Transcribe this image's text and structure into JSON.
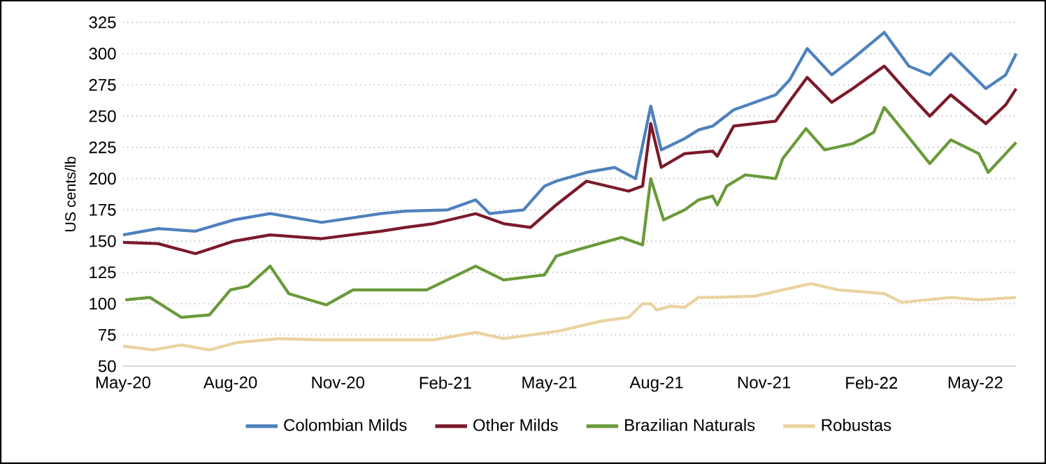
{
  "chart_data": {
    "type": "line",
    "ylabel": "US cents/lb",
    "xlim": [
      "2020-05-01",
      "2022-06-05"
    ],
    "ylim": [
      50,
      325
    ],
    "yticks": [
      50,
      75,
      100,
      125,
      150,
      175,
      200,
      225,
      250,
      275,
      300,
      325
    ],
    "xticks": [
      {
        "value": "2020-05-01",
        "label": "May-20"
      },
      {
        "value": "2020-08-01",
        "label": "Aug-20"
      },
      {
        "value": "2020-11-01",
        "label": "Nov-20"
      },
      {
        "value": "2021-02-01",
        "label": "Feb-21"
      },
      {
        "value": "2021-05-01",
        "label": "May-21"
      },
      {
        "value": "2021-08-01",
        "label": "Aug-21"
      },
      {
        "value": "2021-11-01",
        "label": "Nov-21"
      },
      {
        "value": "2022-02-01",
        "label": "Feb-22"
      },
      {
        "value": "2022-05-01",
        "label": "May-22"
      }
    ],
    "grid": "y",
    "legend": "bottom",
    "marker": "none",
    "line_style": "solid",
    "series": [
      {
        "name": "Colombian Milds",
        "color": "#4f81bd",
        "x": [
          "2020-05-01",
          "2020-05-31",
          "2020-07-02",
          "2020-08-04",
          "2020-09-04",
          "2020-10-18",
          "2020-12-08",
          "2020-12-29",
          "2021-02-03",
          "2021-02-27",
          "2021-03-11",
          "2021-04-09",
          "2021-04-27",
          "2021-05-07",
          "2021-06-02",
          "2021-06-26",
          "2021-07-14",
          "2021-07-27",
          "2021-08-05",
          "2021-08-25",
          "2021-09-06",
          "2021-09-18",
          "2021-10-06",
          "2021-11-11",
          "2021-11-23",
          "2021-12-08",
          "2021-12-29",
          "2022-01-16",
          "2022-02-12",
          "2022-03-05",
          "2022-03-23",
          "2022-04-10",
          "2022-05-10",
          "2022-05-27",
          "2022-06-05"
        ],
        "values": [
          155,
          160,
          158,
          167,
          172,
          165,
          172,
          174,
          175,
          183,
          172,
          175,
          194,
          198,
          205,
          209,
          200,
          258,
          223,
          232,
          239,
          242,
          255,
          267,
          279,
          304,
          283,
          296,
          317,
          290,
          283,
          300,
          272,
          283,
          300
        ]
      },
      {
        "name": "Other Milds",
        "color": "#7b1a2a",
        "x": [
          "2020-05-01",
          "2020-05-31",
          "2020-07-02",
          "2020-08-04",
          "2020-09-04",
          "2020-10-18",
          "2020-12-08",
          "2020-12-29",
          "2021-01-22",
          "2021-02-27",
          "2021-03-23",
          "2021-04-15",
          "2021-05-07",
          "2021-06-02",
          "2021-07-08",
          "2021-07-20",
          "2021-07-27",
          "2021-08-05",
          "2021-08-25",
          "2021-09-18",
          "2021-09-22",
          "2021-10-06",
          "2021-11-11",
          "2021-11-23",
          "2021-12-08",
          "2021-12-29",
          "2022-01-16",
          "2022-02-12",
          "2022-03-05",
          "2022-03-23",
          "2022-04-10",
          "2022-05-10",
          "2022-05-27",
          "2022-06-05"
        ],
        "values": [
          149,
          148,
          140,
          150,
          155,
          152,
          158,
          161,
          164,
          172,
          164,
          161,
          179,
          198,
          190,
          194,
          244,
          209,
          220,
          222,
          218,
          242,
          246,
          262,
          281,
          261,
          272,
          290,
          268,
          250,
          267,
          244,
          259,
          272
        ]
      },
      {
        "name": "Brazilian Naturals",
        "color": "#6a9a3a",
        "x": [
          "2020-05-03",
          "2020-05-24",
          "2020-06-20",
          "2020-07-14",
          "2020-08-01",
          "2020-08-16",
          "2020-09-04",
          "2020-09-20",
          "2020-10-22",
          "2020-11-14",
          "2020-12-08",
          "2021-01-16",
          "2021-02-27",
          "2021-03-23",
          "2021-04-27",
          "2021-05-07",
          "2021-05-21",
          "2021-07-02",
          "2021-07-20",
          "2021-07-27",
          "2021-08-07",
          "2021-08-25",
          "2021-09-06",
          "2021-09-18",
          "2021-09-22",
          "2021-09-30",
          "2021-10-16",
          "2021-11-11",
          "2021-11-17",
          "2021-12-07",
          "2021-12-23",
          "2022-01-16",
          "2022-02-03",
          "2022-02-12",
          "2022-03-05",
          "2022-03-23",
          "2022-04-10",
          "2022-05-04",
          "2022-05-12",
          "2022-05-27",
          "2022-06-05"
        ],
        "values": [
          103,
          105,
          89,
          91,
          111,
          114,
          130,
          108,
          99,
          111,
          111,
          111,
          130,
          119,
          123,
          138,
          142,
          153,
          147,
          200,
          167,
          175,
          183,
          186,
          179,
          194,
          203,
          200,
          216,
          240,
          223,
          228,
          237,
          257,
          233,
          212,
          231,
          220,
          205,
          220,
          229
        ]
      },
      {
        "name": "Robustas",
        "color": "#ead3a0",
        "x": [
          "2020-05-01",
          "2020-05-27",
          "2020-06-20",
          "2020-07-14",
          "2020-08-07",
          "2020-09-12",
          "2020-10-18",
          "2020-12-08",
          "2021-01-22",
          "2021-02-27",
          "2021-03-23",
          "2021-05-09",
          "2021-06-14",
          "2021-07-08",
          "2021-07-20",
          "2021-07-27",
          "2021-08-01",
          "2021-08-13",
          "2021-08-25",
          "2021-09-06",
          "2021-09-18",
          "2021-10-24",
          "2021-12-11",
          "2022-01-04",
          "2022-02-12",
          "2022-02-27",
          "2022-04-10",
          "2022-05-04",
          "2022-06-05"
        ],
        "values": [
          66,
          63,
          67,
          63,
          69,
          72,
          71,
          71,
          71,
          77,
          72,
          78,
          86,
          89,
          100,
          100,
          95,
          98,
          97,
          105,
          105,
          106,
          116,
          111,
          108,
          101,
          105,
          103,
          105
        ]
      }
    ]
  }
}
